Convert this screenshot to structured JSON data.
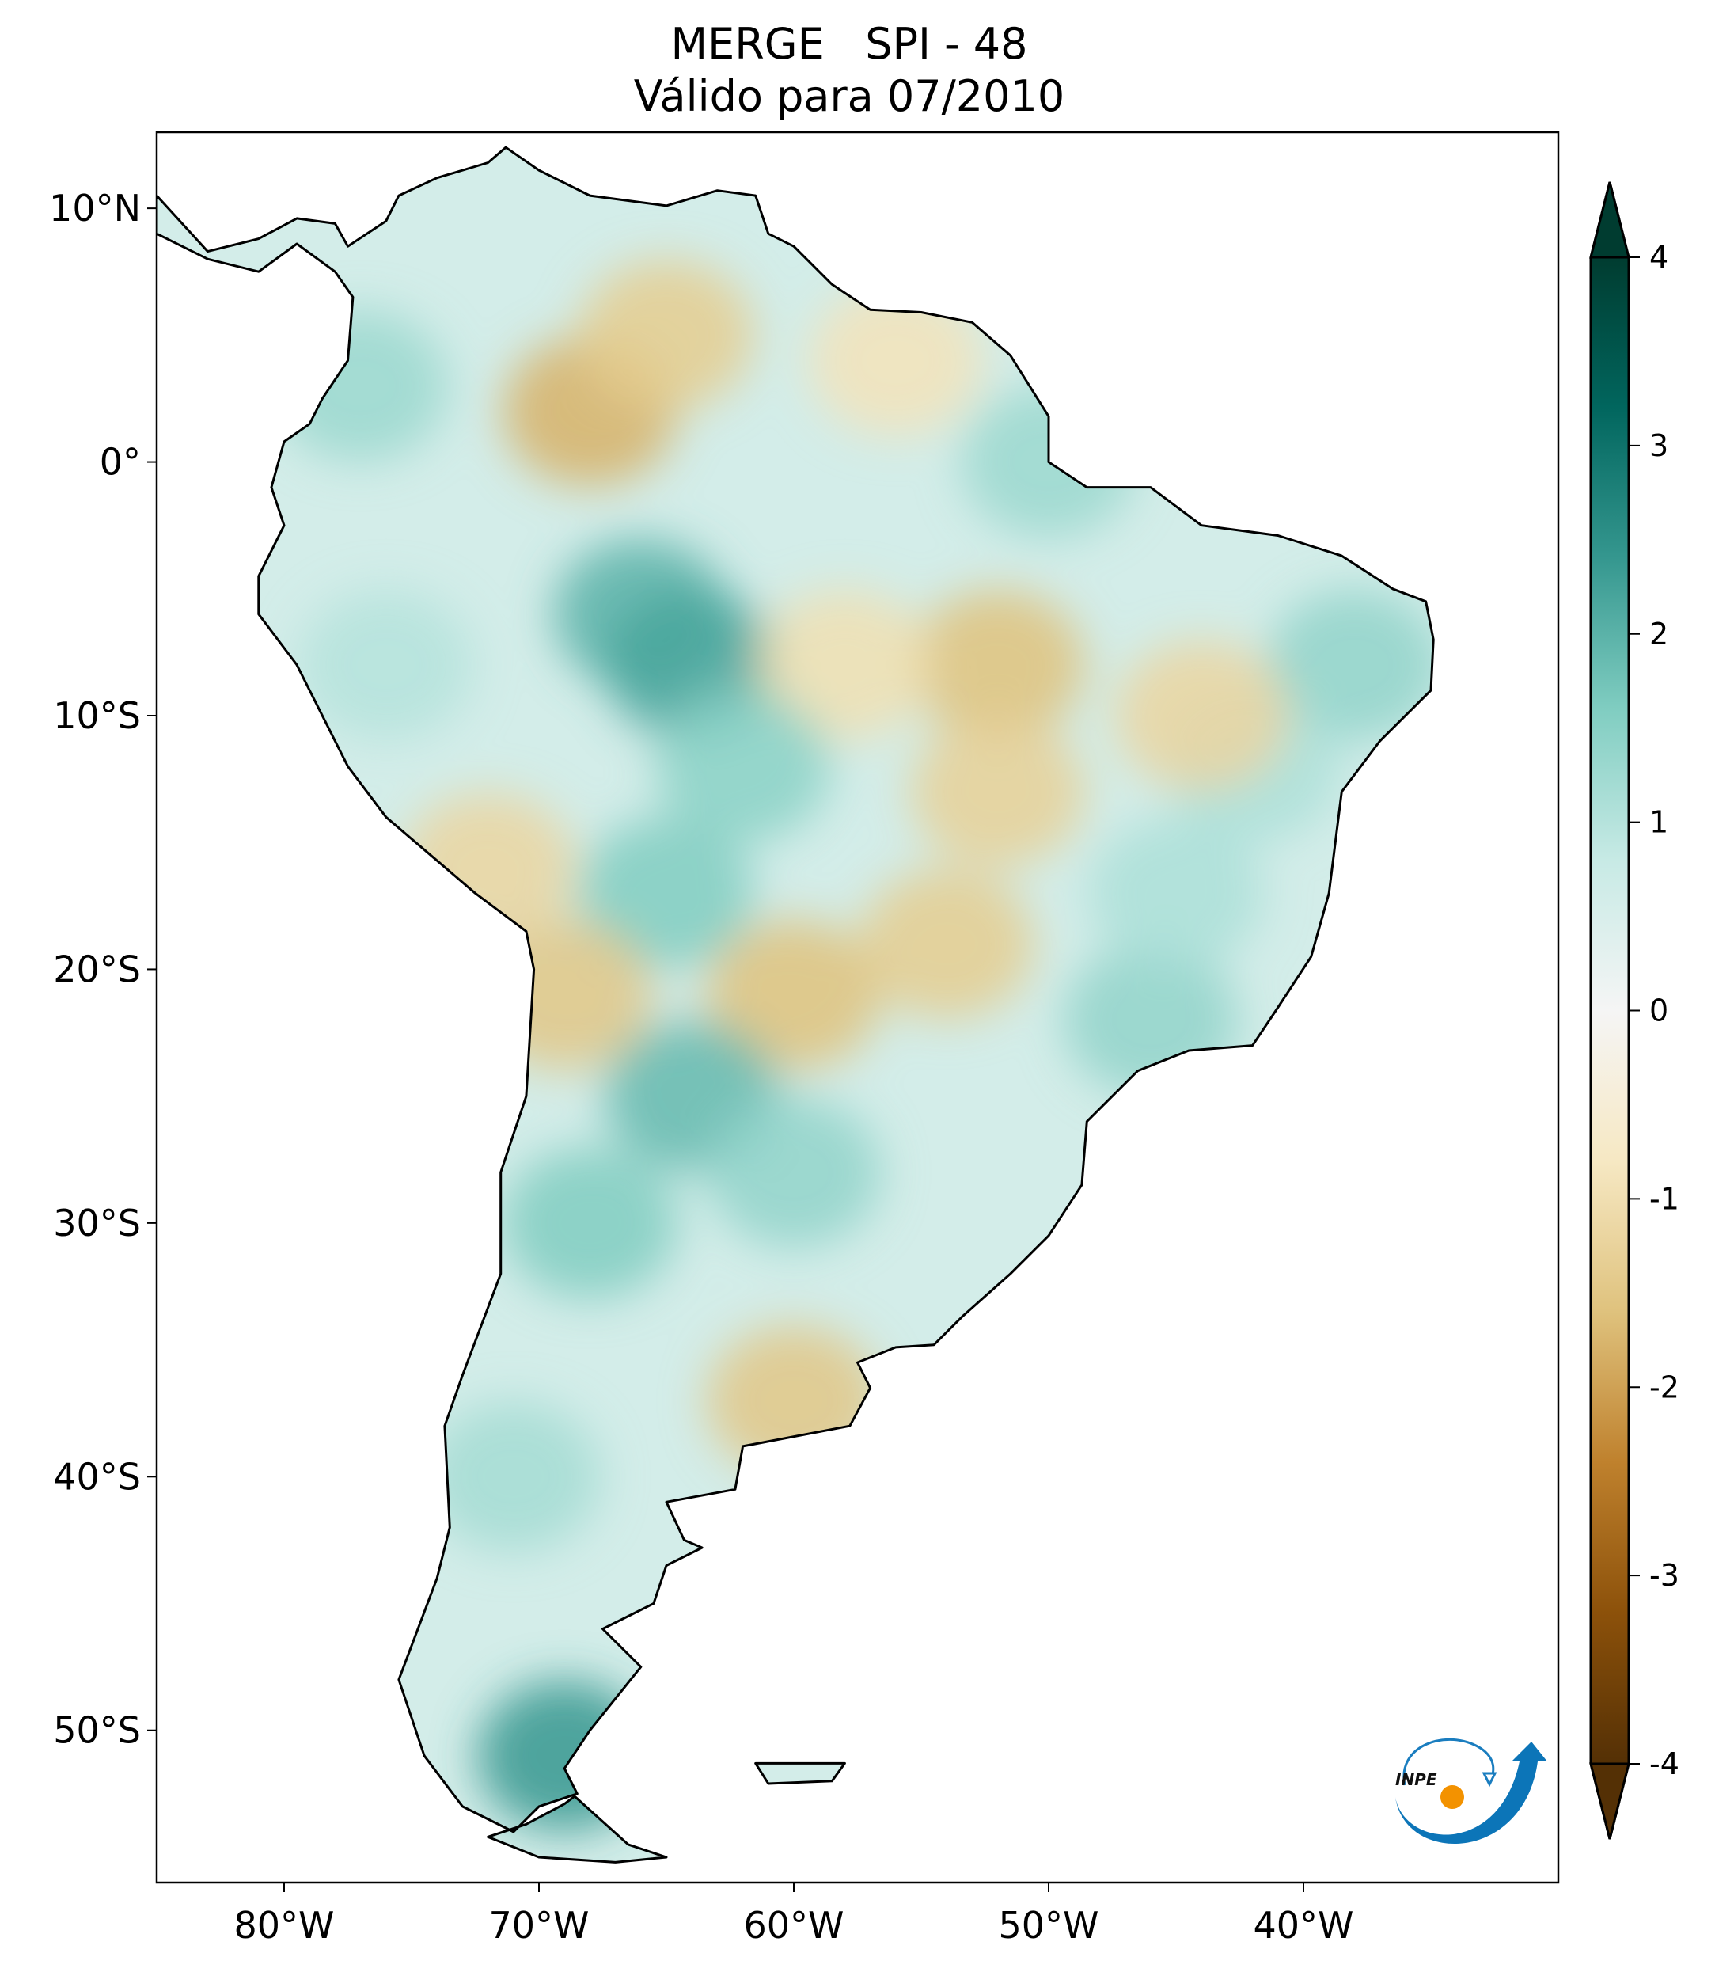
{
  "chart_data": {
    "type": "heatmap",
    "title": "MERGE   SPI - 48",
    "subtitle": "Válido para 07/2010",
    "xlabel": "",
    "ylabel": "",
    "lon_range": [
      -85,
      -30
    ],
    "lat_range": [
      -56,
      13
    ],
    "x_ticks": [
      {
        "value": -80,
        "label": "80°W"
      },
      {
        "value": -70,
        "label": "70°W"
      },
      {
        "value": -60,
        "label": "60°W"
      },
      {
        "value": -50,
        "label": "50°W"
      },
      {
        "value": -40,
        "label": "40°W"
      }
    ],
    "y_ticks": [
      {
        "value": 10,
        "label": "10°N"
      },
      {
        "value": 0,
        "label": "0°"
      },
      {
        "value": -10,
        "label": "10°S"
      },
      {
        "value": -20,
        "label": "20°S"
      },
      {
        "value": -30,
        "label": "30°S"
      },
      {
        "value": -40,
        "label": "40°S"
      },
      {
        "value": -50,
        "label": "50°S"
      }
    ],
    "colorbar": {
      "range": [
        -4,
        4
      ],
      "extend": "both",
      "ticks": [
        {
          "value": 4,
          "label": "4"
        },
        {
          "value": 3,
          "label": "3"
        },
        {
          "value": 2,
          "label": "2"
        },
        {
          "value": 1,
          "label": "1"
        },
        {
          "value": 0,
          "label": "0"
        },
        {
          "value": -1,
          "label": "-1"
        },
        {
          "value": -2,
          "label": "-2"
        },
        {
          "value": -3,
          "label": "-3"
        },
        {
          "value": -4,
          "label": "-4"
        }
      ],
      "colors": [
        "#543005",
        "#8c510a",
        "#bf812d",
        "#dfc27d",
        "#f6e8c3",
        "#f5f5f5",
        "#c7eae5",
        "#80cdc1",
        "#35978f",
        "#01665e",
        "#003c30"
      ]
    },
    "anomalies": [
      {
        "lon": -68,
        "lat": 2,
        "value": -1.8
      },
      {
        "lon": -65,
        "lat": 5,
        "value": -1.4
      },
      {
        "lon": -66,
        "lat": -6,
        "value": 2.0
      },
      {
        "lon": -64,
        "lat": -8,
        "value": 2.2
      },
      {
        "lon": -52,
        "lat": -8,
        "value": -1.6
      },
      {
        "lon": -52,
        "lat": -13,
        "value": -1.3
      },
      {
        "lon": -58,
        "lat": -8,
        "value": -1.0
      },
      {
        "lon": -60,
        "lat": -21,
        "value": -1.6
      },
      {
        "lon": -54,
        "lat": -19,
        "value": -1.4
      },
      {
        "lon": -64,
        "lat": -25,
        "value": 1.9
      },
      {
        "lon": -65,
        "lat": -17,
        "value": 1.6
      },
      {
        "lon": -62,
        "lat": -12,
        "value": 1.5
      },
      {
        "lon": -68,
        "lat": -30,
        "value": 1.6
      },
      {
        "lon": -60,
        "lat": -37,
        "value": -1.5
      },
      {
        "lon": -69,
        "lat": -51,
        "value": 2.4
      },
      {
        "lon": -69,
        "lat": -21,
        "value": -1.5
      },
      {
        "lon": -77,
        "lat": 3,
        "value": 1.3
      },
      {
        "lon": -50,
        "lat": 0,
        "value": 1.3
      },
      {
        "lon": -46,
        "lat": -22,
        "value": 1.4
      },
      {
        "lon": -38,
        "lat": -8,
        "value": 1.4
      },
      {
        "lon": -42,
        "lat": -12,
        "value": 1.1
      },
      {
        "lon": -45,
        "lat": -17,
        "value": 1.1
      },
      {
        "lon": -60,
        "lat": -28,
        "value": 1.4
      },
      {
        "lon": -71,
        "lat": -40,
        "value": 1.2
      },
      {
        "lon": -76,
        "lat": -8,
        "value": 1.0
      },
      {
        "lon": -72,
        "lat": -16,
        "value": -1.2
      },
      {
        "lon": -44,
        "lat": -10,
        "value": -1.2
      },
      {
        "lon": -56,
        "lat": 4,
        "value": -0.9
      }
    ]
  },
  "logo": {
    "text": "INPE"
  }
}
